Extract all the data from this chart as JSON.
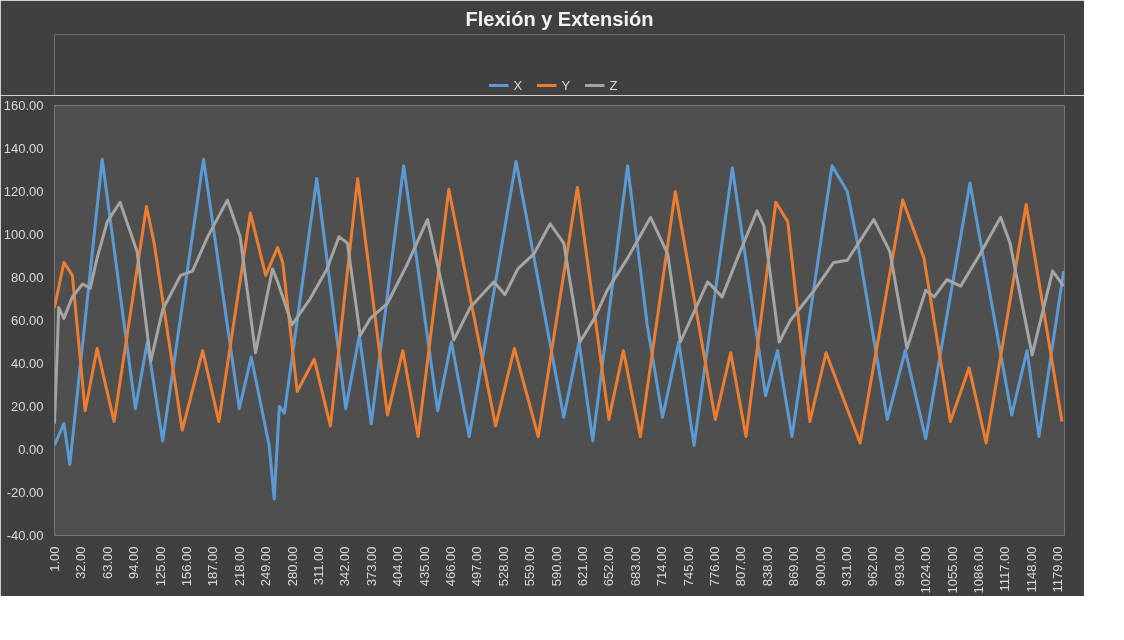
{
  "chart_data": {
    "type": "line",
    "title": "Flexión y Extensión",
    "legend": "top",
    "grid": false,
    "line_style": "solid",
    "marker": "none",
    "xlim": [
      1,
      1187
    ],
    "ylim": [
      -40,
      160
    ],
    "yticks": [
      {
        "value": -40,
        "label": "-40.00"
      },
      {
        "value": -20,
        "label": "-20.00"
      },
      {
        "value": 0,
        "label": "0.00"
      },
      {
        "value": 20,
        "label": "20.00"
      },
      {
        "value": 40,
        "label": "40.00"
      },
      {
        "value": 60,
        "label": "60.00"
      },
      {
        "value": 80,
        "label": "80.00"
      },
      {
        "value": 100,
        "label": "100.00"
      },
      {
        "value": 120,
        "label": "120.00"
      },
      {
        "value": 140,
        "label": "140.00"
      },
      {
        "value": 160,
        "label": "160.00"
      }
    ],
    "xticks": [
      {
        "value": 1,
        "label": "1.00"
      },
      {
        "value": 32,
        "label": "32.00"
      },
      {
        "value": 63,
        "label": "63.00"
      },
      {
        "value": 94,
        "label": "94.00"
      },
      {
        "value": 125,
        "label": "125.00"
      },
      {
        "value": 156,
        "label": "156.00"
      },
      {
        "value": 187,
        "label": "187.00"
      },
      {
        "value": 218,
        "label": "218.00"
      },
      {
        "value": 249,
        "label": "249.00"
      },
      {
        "value": 280,
        "label": "280.00"
      },
      {
        "value": 311,
        "label": "311.00"
      },
      {
        "value": 342,
        "label": "342.00"
      },
      {
        "value": 373,
        "label": "373.00"
      },
      {
        "value": 404,
        "label": "404.00"
      },
      {
        "value": 435,
        "label": "435.00"
      },
      {
        "value": 466,
        "label": "466.00"
      },
      {
        "value": 497,
        "label": "497.00"
      },
      {
        "value": 528,
        "label": "528.00"
      },
      {
        "value": 559,
        "label": "559.00"
      },
      {
        "value": 590,
        "label": "590.00"
      },
      {
        "value": 621,
        "label": "621.00"
      },
      {
        "value": 652,
        "label": "652.00"
      },
      {
        "value": 683,
        "label": "683.00"
      },
      {
        "value": 714,
        "label": "714.00"
      },
      {
        "value": 745,
        "label": "745.00"
      },
      {
        "value": 776,
        "label": "776.00"
      },
      {
        "value": 807,
        "label": "807.00"
      },
      {
        "value": 838,
        "label": "838.00"
      },
      {
        "value": 869,
        "label": "869.00"
      },
      {
        "value": 900,
        "label": "900.00"
      },
      {
        "value": 931,
        "label": "931.00"
      },
      {
        "value": 962,
        "label": "962.00"
      },
      {
        "value": 993,
        "label": "993.00"
      },
      {
        "value": 1024,
        "label": "1024.00"
      },
      {
        "value": 1055,
        "label": "1055.00"
      },
      {
        "value": 1086,
        "label": "1086.00"
      },
      {
        "value": 1117,
        "label": "1117.00"
      },
      {
        "value": 1148,
        "label": "1148.00"
      },
      {
        "value": 1179,
        "label": "1179.00"
      }
    ],
    "series": [
      {
        "name": "X",
        "color": "#5b9bd5",
        "x": [
          1,
          12,
          19,
          57,
          96,
          110,
          128,
          176,
          218,
          232,
          253,
          259,
          265,
          271,
          309,
          343,
          359,
          373,
          411,
          451,
          467,
          488,
          543,
          599,
          617,
          633,
          674,
          697,
          715,
          734,
          752,
          797,
          836,
          850,
          867,
          914,
          932,
          944,
          979,
          1000,
          1024,
          1076,
          1125,
          1143,
          1157,
          1186
        ],
        "values": [
          2,
          12,
          -7,
          135,
          19,
          50,
          4,
          135,
          19,
          43,
          2,
          -23,
          20,
          17,
          126,
          19,
          53,
          12,
          132,
          18,
          50,
          6,
          134,
          15,
          50,
          4,
          132,
          58,
          15,
          50,
          2,
          131,
          25,
          46,
          6,
          132,
          120,
          96,
          14,
          46,
          5,
          124,
          16,
          46,
          6,
          83
        ]
      },
      {
        "name": "Y",
        "color": "#ed7d31",
        "x": [
          1,
          12,
          22,
          37,
          51,
          71,
          109,
          118,
          151,
          175,
          194,
          231,
          249,
          263,
          269,
          286,
          306,
          325,
          357,
          392,
          410,
          428,
          464,
          519,
          541,
          569,
          615,
          652,
          669,
          689,
          730,
          777,
          795,
          813,
          848,
          862,
          888,
          907,
          947,
          997,
          1022,
          1053,
          1075,
          1095,
          1142,
          1184
        ],
        "values": [
          66,
          87,
          81,
          18,
          47,
          13,
          113,
          96,
          9,
          46,
          13,
          110,
          81,
          94,
          87,
          27,
          42,
          11,
          126,
          16,
          46,
          6,
          121,
          11,
          47,
          6,
          122,
          14,
          46,
          6,
          120,
          14,
          45,
          6,
          115,
          106,
          13,
          45,
          3,
          116,
          89,
          13,
          38,
          3,
          114,
          13
        ]
      },
      {
        "name": "Z",
        "color": "#a5a5a5",
        "x": [
          1,
          6,
          12,
          22,
          34,
          43,
          51,
          63,
          78,
          98,
          114,
          128,
          149,
          163,
          181,
          204,
          219,
          237,
          257,
          263,
          280,
          301,
          321,
          335,
          345,
          360,
          372,
          392,
          415,
          439,
          458,
          470,
          489,
          517,
          530,
          545,
          564,
          583,
          599,
          618,
          635,
          650,
          674,
          701,
          721,
          736,
          768,
          785,
          806,
          826,
          834,
          852,
          865,
          893,
          916,
          932,
          963,
          982,
          1002,
          1024,
          1034,
          1049,
          1065,
          1088,
          1112,
          1123,
          1149,
          1173,
          1186
        ],
        "values": [
          12,
          66,
          61,
          71,
          77,
          75,
          89,
          106,
          115,
          92,
          41,
          65,
          81,
          83,
          99,
          116,
          99,
          45,
          84,
          78,
          58,
          70,
          84,
          99,
          96,
          53,
          61,
          68,
          86,
          107,
          73,
          51,
          66,
          78,
          72,
          84,
          91,
          105,
          96,
          50,
          61,
          74,
          89,
          108,
          91,
          50,
          78,
          71,
          92,
          111,
          104,
          50,
          60,
          74,
          87,
          88,
          107,
          92,
          47,
          74,
          71,
          79,
          76,
          91,
          108,
          96,
          44,
          83,
          76
        ]
      }
    ]
  }
}
